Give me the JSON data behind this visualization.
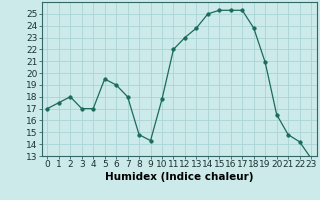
{
  "x": [
    0,
    1,
    2,
    3,
    4,
    5,
    6,
    7,
    8,
    9,
    10,
    11,
    12,
    13,
    14,
    15,
    16,
    17,
    18,
    19,
    20,
    21,
    22,
    23
  ],
  "y": [
    17,
    17.5,
    18,
    17,
    17,
    19.5,
    19,
    18,
    14.8,
    14.3,
    17.8,
    22,
    23,
    23.8,
    25,
    25.3,
    25.3,
    25.3,
    23.8,
    20.9,
    16.5,
    14.8,
    14.2,
    12.8
  ],
  "line_color": "#1a6b5a",
  "marker": "o",
  "marker_size": 2.5,
  "bg_color": "#cceaea",
  "grid_color": "#aad4d4",
  "xlabel": "Humidex (Indice chaleur)",
  "ylim": [
    13,
    26
  ],
  "xlim": [
    -0.5,
    23.5
  ],
  "yticks": [
    13,
    14,
    15,
    16,
    17,
    18,
    19,
    20,
    21,
    22,
    23,
    24,
    25
  ],
  "xticks": [
    0,
    1,
    2,
    3,
    4,
    5,
    6,
    7,
    8,
    9,
    10,
    11,
    12,
    13,
    14,
    15,
    16,
    17,
    18,
    19,
    20,
    21,
    22,
    23
  ],
  "tick_fontsize": 6.5,
  "xlabel_fontsize": 7.5
}
